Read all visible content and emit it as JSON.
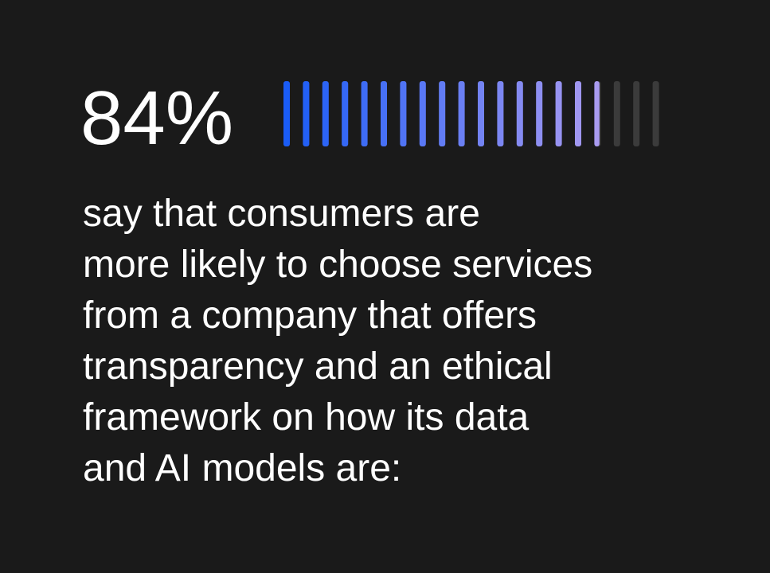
{
  "chart_data": {
    "type": "progress",
    "values": [
      84
    ],
    "value_labels": [
      "84%"
    ],
    "xlim": [
      0,
      100
    ],
    "colors": [
      "#1a5cf6",
      "#a99bf1"
    ],
    "track_color": "#3b3b3b",
    "text_lines": [
      "say that consumers are",
      "more likely to choose services",
      "from a company that offers",
      "transparency and an ethical",
      "framework on how its data",
      "and AI models are:"
    ]
  }
}
